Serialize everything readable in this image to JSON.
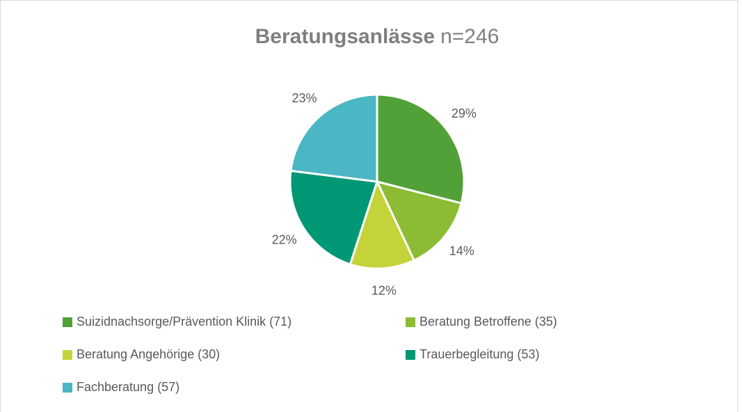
{
  "chart_data": {
    "type": "pie",
    "title": "Beratungsanlässe",
    "subtitle": "n=246",
    "categories": [
      "Suizidnachsorge/Prävention Klinik (71)",
      "Beratung Betroffene (35)",
      "Beratung Angehörige (30)",
      "Trauerbegleitung (53)",
      "Fachberatung (57)"
    ],
    "values": [
      29,
      14,
      12,
      22,
      23
    ],
    "value_labels": [
      "29%",
      "14%",
      "12%",
      "22%",
      "23%"
    ],
    "colors": [
      "#52a038",
      "#8cbc34",
      "#c5d33a",
      "#009874",
      "#4bb6c4"
    ],
    "legend": "bottom"
  }
}
